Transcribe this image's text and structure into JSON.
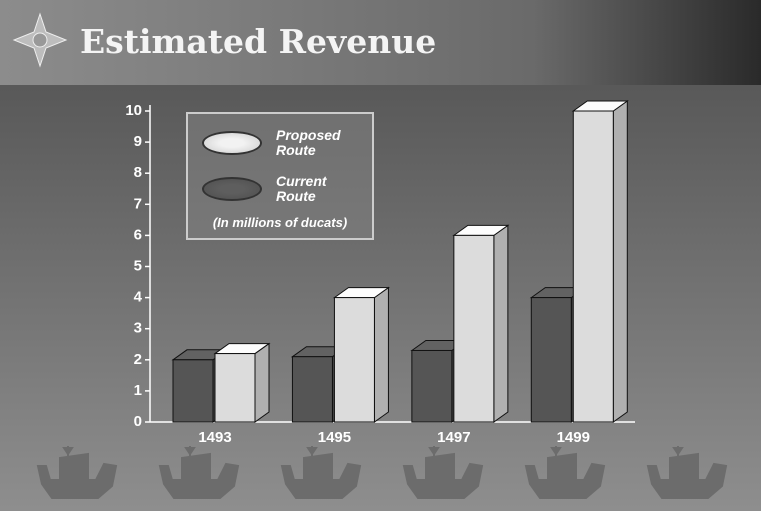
{
  "chart_data": {
    "type": "bar3d",
    "title": "Estimated Revenue",
    "unit_note": "(In millions of ducats)",
    "categories": [
      "1493",
      "1495",
      "1497",
      "1499"
    ],
    "series": [
      {
        "name": "Current Route",
        "color": "#555555",
        "values": [
          2,
          2.1,
          2.3,
          4
        ]
      },
      {
        "name": "Proposed Route",
        "color": "#dcdcdc",
        "values": [
          2.2,
          4,
          6,
          10
        ]
      }
    ],
    "legend_order": [
      1,
      0
    ],
    "ylim": [
      0,
      10
    ],
    "yticks": [
      0,
      1,
      2,
      3,
      4,
      5,
      6,
      7,
      8,
      9,
      10
    ]
  }
}
